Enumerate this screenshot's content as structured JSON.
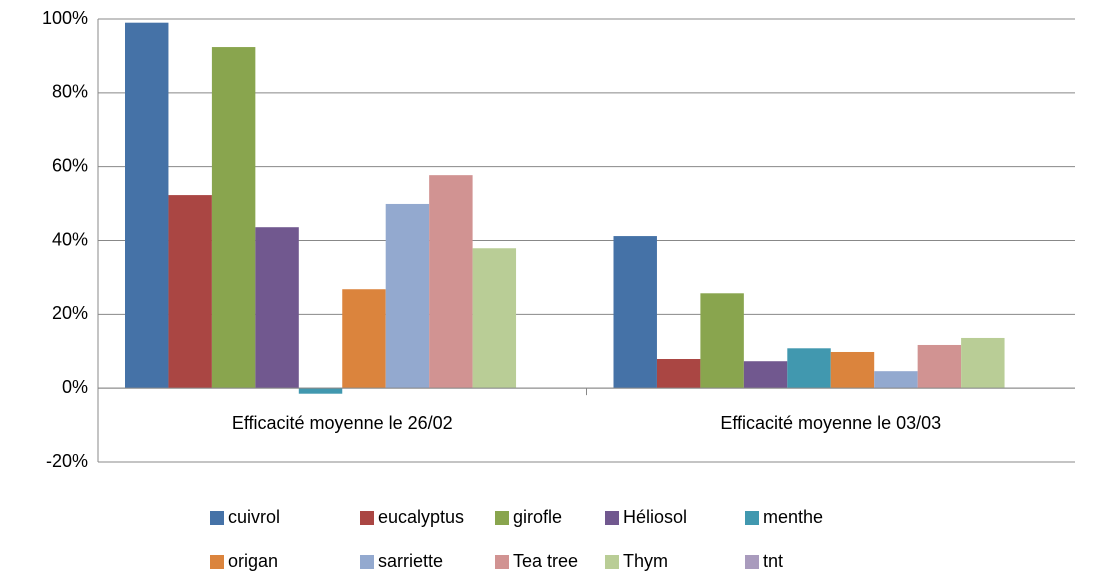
{
  "chart_data": {
    "type": "bar",
    "categories": [
      "Efficacité moyenne le 26/02",
      "Efficacité moyenne le 03/03"
    ],
    "series": [
      {
        "name": "cuivrol",
        "color": "#4572a7",
        "values": [
          99,
          41.2
        ]
      },
      {
        "name": "eucalyptus",
        "color": "#aa4643",
        "values": [
          52.3,
          7.9
        ]
      },
      {
        "name": "girofle",
        "color": "#89a54e",
        "values": [
          92.4,
          25.7
        ]
      },
      {
        "name": "Héliosol",
        "color": "#71588f",
        "values": [
          43.6,
          7.3
        ]
      },
      {
        "name": "menthe",
        "color": "#4198af",
        "values": [
          -1.5,
          10.8
        ]
      },
      {
        "name": "origan",
        "color": "#db843d",
        "values": [
          26.8,
          9.8
        ]
      },
      {
        "name": "sarriette",
        "color": "#93a9cf",
        "values": [
          49.9,
          4.6
        ]
      },
      {
        "name": "Tea tree",
        "color": "#d19392",
        "values": [
          57.7,
          11.7
        ]
      },
      {
        "name": "Thym",
        "color": "#b9cd96",
        "values": [
          37.9,
          13.6
        ]
      },
      {
        "name": "tnt",
        "color": "#a99bbd",
        "values": [
          0,
          0
        ]
      }
    ],
    "ylim": [
      -20,
      100
    ],
    "yticks": [
      {
        "value": -20,
        "label": "-20%"
      },
      {
        "value": 0,
        "label": "0%"
      },
      {
        "value": 20,
        "label": "20%"
      },
      {
        "value": 40,
        "label": "40%"
      },
      {
        "value": 60,
        "label": "60%"
      },
      {
        "value": 80,
        "label": "80%"
      },
      {
        "value": 100,
        "label": "100%"
      }
    ],
    "grid": true,
    "legend": "bottom"
  }
}
